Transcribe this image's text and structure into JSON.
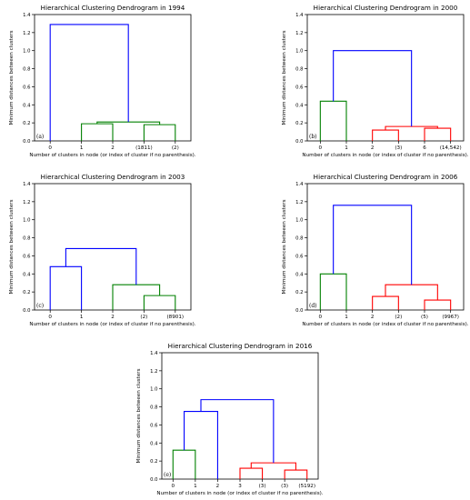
{
  "figure": {
    "background": "#ffffff",
    "colors": {
      "blue": "#0000ff",
      "green": "#008000",
      "red": "#ff0000",
      "axis": "#000000"
    }
  },
  "chart_data": [
    {
      "type": "dendrogram",
      "panel": "(a)",
      "title": "Hierarchical Clustering Dendrogram in 1994",
      "xlabel": "Number of clusters in node (or index of cluster if no parenthesis).",
      "ylabel": "Minimum distances between clusters",
      "ylim": [
        0,
        1.4
      ],
      "yticks": [
        "0.0",
        "0.2",
        "0.4",
        "0.6",
        "0.8",
        "1.0",
        "1.2",
        "1.4"
      ],
      "leaves": [
        "0",
        "1",
        "2",
        "(1811)",
        "(2)"
      ],
      "merges": [
        {
          "left": 1,
          "right": 2,
          "height": 0.19,
          "color": "green"
        },
        {
          "left": 3,
          "right": 4,
          "height": 0.18,
          "color": "green"
        },
        {
          "left": 5,
          "right": 6,
          "height": 0.21,
          "color": "green"
        },
        {
          "left": 0,
          "right": 7,
          "height": 1.29,
          "color": "blue"
        }
      ]
    },
    {
      "type": "dendrogram",
      "panel": "(b)",
      "title": "Hierarchical Clustering Dendrogram in 2000",
      "xlabel": "Number of clusters in node (or index of cluster if no parenthesis).",
      "ylabel": "Minimum distances between clusters",
      "ylim": [
        0,
        1.4
      ],
      "yticks": [
        "0.0",
        "0.2",
        "0.4",
        "0.6",
        "0.8",
        "1.0",
        "1.2",
        "1.4"
      ],
      "leaves": [
        "0",
        "1",
        "2",
        "(3)",
        "6",
        "(14,542)"
      ],
      "merges": [
        {
          "left": 0,
          "right": 1,
          "height": 0.44,
          "color": "green"
        },
        {
          "left": 2,
          "right": 3,
          "height": 0.12,
          "color": "red"
        },
        {
          "left": 4,
          "right": 5,
          "height": 0.14,
          "color": "red"
        },
        {
          "left": 7,
          "right": 8,
          "height": 0.16,
          "color": "red"
        },
        {
          "left": 6,
          "right": 9,
          "height": 1.0,
          "color": "blue"
        }
      ]
    },
    {
      "type": "dendrogram",
      "panel": "(c)",
      "title": "Hierarchical Clustering Dendrogram in 2003",
      "xlabel": "Number of clusters in node (or index of cluster if no parenthesis).",
      "ylabel": "Minimum distances between clusters",
      "ylim": [
        0,
        1.4
      ],
      "yticks": [
        "0.0",
        "0.2",
        "0.4",
        "0.6",
        "0.8",
        "1.0",
        "1.2",
        "1.4"
      ],
      "leaves": [
        "0",
        "1",
        "2",
        "(2)",
        "(8901)"
      ],
      "merges": [
        {
          "left": 0,
          "right": 1,
          "height": 0.48,
          "color": "blue"
        },
        {
          "left": 3,
          "right": 4,
          "height": 0.16,
          "color": "green"
        },
        {
          "left": 2,
          "right": 6,
          "height": 0.28,
          "color": "green"
        },
        {
          "left": 5,
          "right": 7,
          "height": 0.68,
          "color": "blue"
        }
      ]
    },
    {
      "type": "dendrogram",
      "panel": "(d)",
      "title": "Hierarchical Clustering Dendrogram in 2006",
      "xlabel": "Number of clusters in node (or index of cluster if no parenthesis).",
      "ylabel": "Minimum distances between clusters",
      "ylim": [
        0,
        1.4
      ],
      "yticks": [
        "0.0",
        "0.2",
        "0.4",
        "0.6",
        "0.8",
        "1.0",
        "1.2",
        "1.4"
      ],
      "leaves": [
        "0",
        "1",
        "2",
        "(2)",
        "(5)",
        "(9967)"
      ],
      "merges": [
        {
          "left": 0,
          "right": 1,
          "height": 0.4,
          "color": "green"
        },
        {
          "left": 2,
          "right": 3,
          "height": 0.15,
          "color": "red"
        },
        {
          "left": 4,
          "right": 5,
          "height": 0.11,
          "color": "red"
        },
        {
          "left": 7,
          "right": 8,
          "height": 0.28,
          "color": "red"
        },
        {
          "left": 6,
          "right": 9,
          "height": 1.16,
          "color": "blue"
        }
      ]
    },
    {
      "type": "dendrogram",
      "panel": "(e)",
      "title": "Hierarchical Clustering Dendrogram in 2016",
      "xlabel": "Number of clusters in node (or index of cluster if no parenthesis).",
      "ylabel": "Minimum distances between clusters",
      "ylim": [
        0,
        1.4
      ],
      "yticks": [
        "0.0",
        "0.2",
        "0.4",
        "0.6",
        "0.8",
        "1.0",
        "1.2",
        "1.4"
      ],
      "leaves": [
        "0",
        "1",
        "2",
        "3",
        "(3)",
        "(3)",
        "(5192)"
      ],
      "merges": [
        {
          "left": 0,
          "right": 1,
          "height": 0.32,
          "color": "green"
        },
        {
          "left": 7,
          "right": 2,
          "height": 0.75,
          "color": "blue"
        },
        {
          "left": 3,
          "right": 4,
          "height": 0.12,
          "color": "red"
        },
        {
          "left": 5,
          "right": 6,
          "height": 0.1,
          "color": "red"
        },
        {
          "left": 9,
          "right": 10,
          "height": 0.18,
          "color": "red"
        },
        {
          "left": 8,
          "right": 11,
          "height": 0.88,
          "color": "blue"
        }
      ]
    }
  ]
}
